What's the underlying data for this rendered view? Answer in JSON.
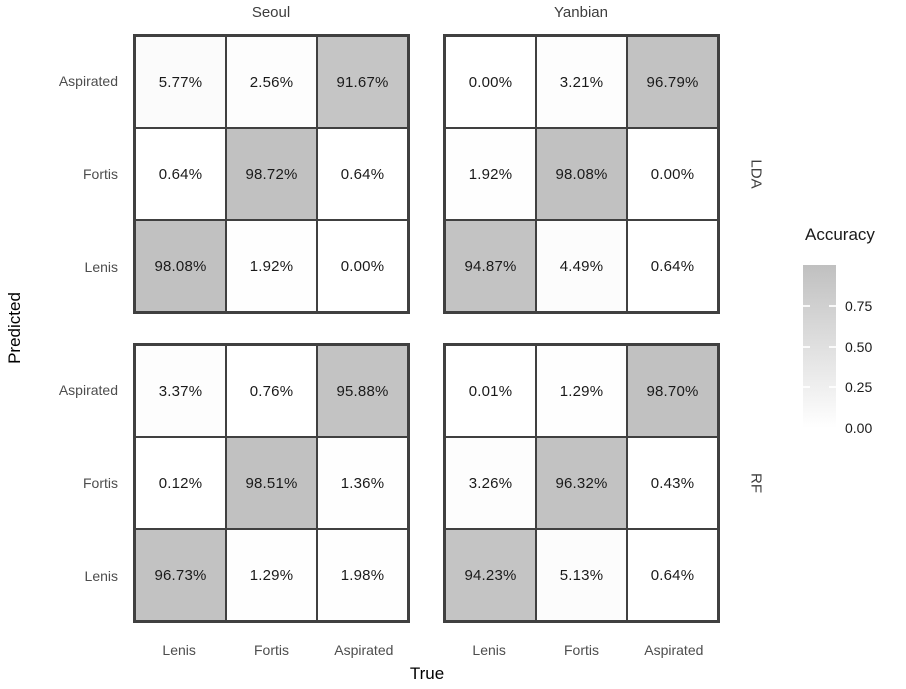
{
  "figure": {
    "kind": "faceted confusion-matrix heatmap"
  },
  "facets": {
    "cols": [
      "Seoul",
      "Yanbian"
    ],
    "rows": [
      "LDA",
      "RF"
    ]
  },
  "axes": {
    "x_title": "True",
    "y_title": "Predicted",
    "x_ticks": [
      "Lenis",
      "Fortis",
      "Aspirated"
    ],
    "y_ticks": [
      "Aspirated",
      "Fortis",
      "Lenis"
    ]
  },
  "legend": {
    "title": "Accuracy",
    "tick_values": [
      0.75,
      0.5,
      0.25,
      0.0
    ],
    "range": [
      0,
      1
    ]
  },
  "colors": {
    "background": "#ffffff",
    "cell_fill_low": "#ffffff",
    "cell_fill_high": "#c0c0c0",
    "cell_border": "#404040",
    "cell_text": "#1a1a1a",
    "axis_tick_text": "#4d4d4d",
    "strip_text": "#3d3d3d",
    "axis_title_text": "#000000",
    "legend_text": "#1a1a1a"
  },
  "chart_data": {
    "type": "heatmap",
    "title": "",
    "x_categories": [
      "Lenis",
      "Fortis",
      "Aspirated"
    ],
    "y_categories": [
      "Aspirated",
      "Fortis",
      "Lenis"
    ],
    "facet_cols": [
      "Seoul",
      "Yanbian"
    ],
    "facet_rows": [
      "LDA",
      "RF"
    ],
    "fill_variable": "Accuracy",
    "fill_range": [
      0,
      1
    ],
    "value_unit": "%",
    "facets": [
      {
        "col": "Seoul",
        "row": "LDA",
        "values": [
          [
            5.77,
            2.56,
            91.67
          ],
          [
            0.64,
            98.72,
            0.64
          ],
          [
            98.08,
            1.92,
            0.0
          ]
        ]
      },
      {
        "col": "Yanbian",
        "row": "LDA",
        "values": [
          [
            0.0,
            3.21,
            96.79
          ],
          [
            1.92,
            98.08,
            0.0
          ],
          [
            94.87,
            4.49,
            0.64
          ]
        ]
      },
      {
        "col": "Seoul",
        "row": "RF",
        "values": [
          [
            3.37,
            0.76,
            95.88
          ],
          [
            0.12,
            98.51,
            1.36
          ],
          [
            96.73,
            1.29,
            1.98
          ]
        ]
      },
      {
        "col": "Yanbian",
        "row": "RF",
        "values": [
          [
            0.01,
            1.29,
            98.7
          ],
          [
            3.26,
            96.32,
            0.43
          ],
          [
            94.23,
            5.13,
            0.64
          ]
        ]
      }
    ],
    "legend_position": "right",
    "grid": false
  }
}
